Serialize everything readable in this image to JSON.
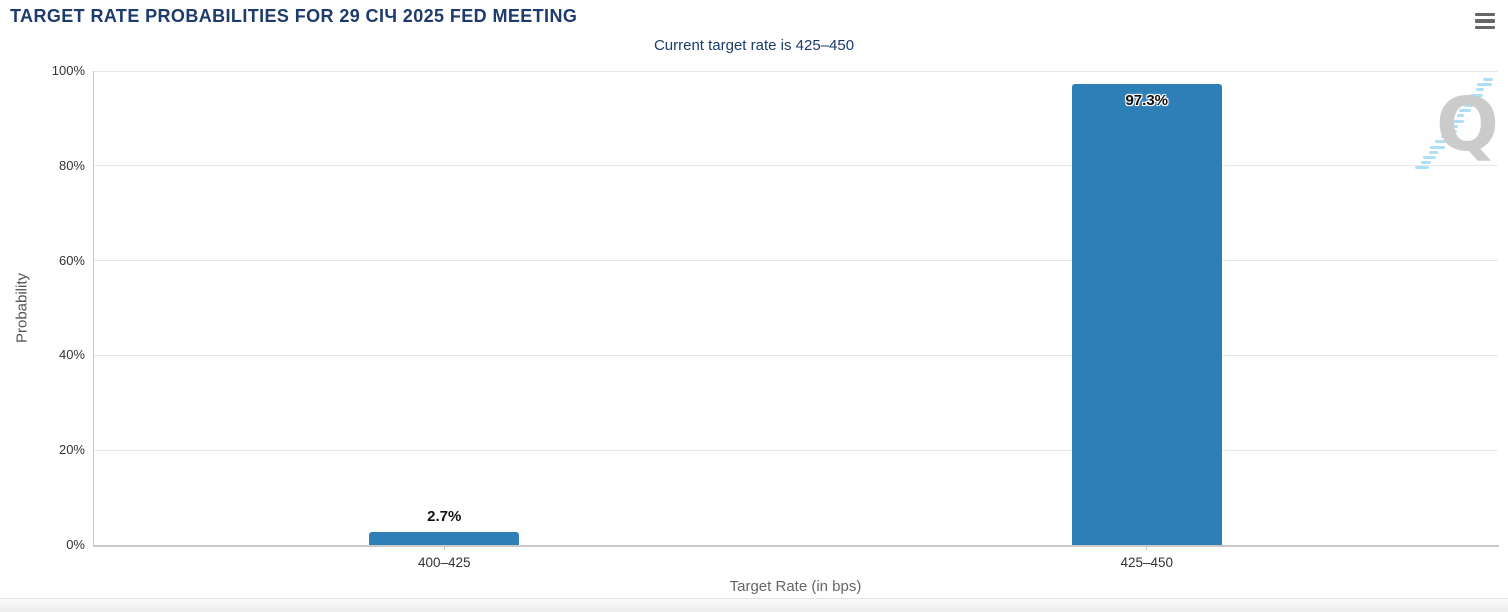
{
  "header": {
    "menu_icon": "hamburger-menu-icon"
  },
  "chart_data": {
    "type": "bar",
    "title": "TARGET RATE PROBABILITIES FOR 29 СІЧ 2025 FED MEETING",
    "subtitle": "Current target rate is 425–450",
    "categories": [
      "400–425",
      "425–450"
    ],
    "values": [
      2.7,
      97.3
    ],
    "value_labels": [
      "2.7%",
      "97.3%"
    ],
    "xlabel": "Target Rate (in bps)",
    "ylabel": "Probability",
    "ylim": [
      0,
      100
    ],
    "ytick_values": [
      0,
      20,
      40,
      60,
      80,
      100
    ],
    "ytick_labels": [
      "0%",
      "20%",
      "40%",
      "60%",
      "80%",
      "100%"
    ],
    "grid": true,
    "legend": "none",
    "bar_color": "#2e7eb8"
  },
  "watermark": {
    "letter": "Q"
  },
  "colors": {
    "title_navy": "#1e3b6d",
    "bar_blue": "#2e7eb8",
    "gridline": "#e6e6e6",
    "axis_line": "#c9c9c9",
    "axis_text": "#333333",
    "muted_text": "#666666",
    "watermark_gray": "#cbcbcb",
    "watermark_blue": "#aee0f5"
  }
}
